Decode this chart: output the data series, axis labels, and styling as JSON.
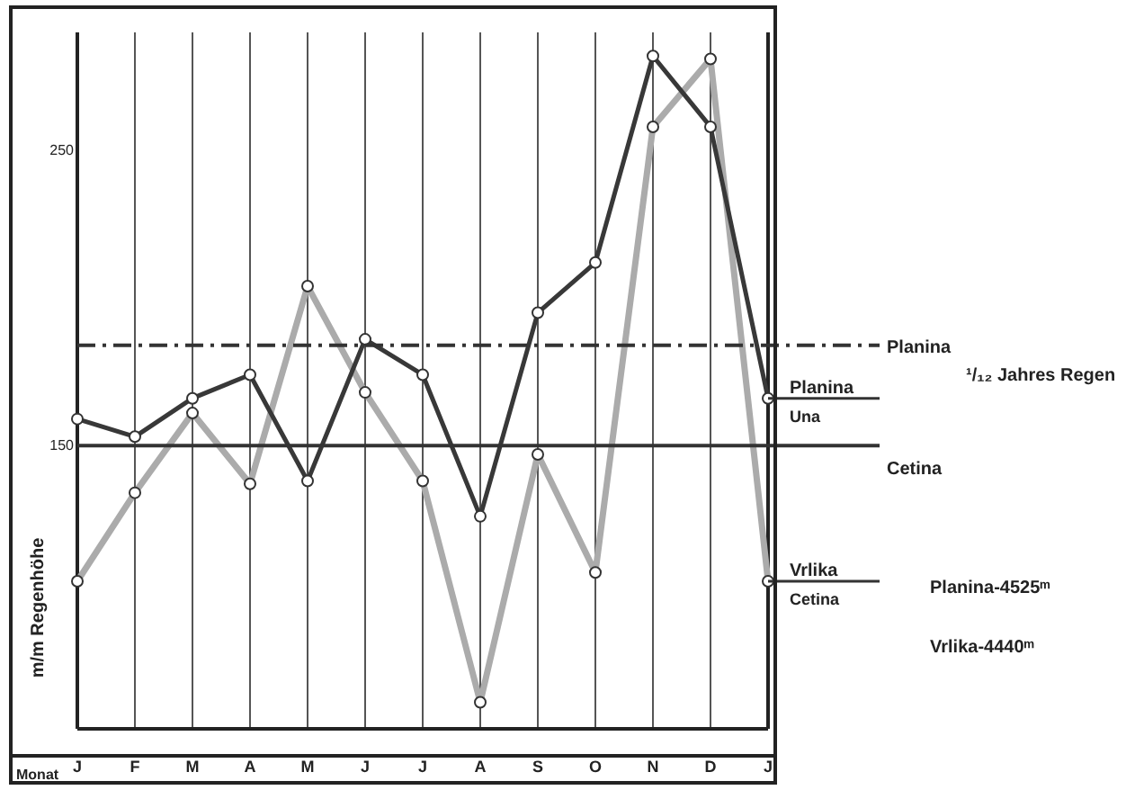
{
  "chart_data": {
    "type": "line",
    "xlabel": "Monat",
    "ylabel": "m/m Regenhöhe",
    "categories": [
      "J",
      "F",
      "M",
      "A",
      "M",
      "J",
      "J",
      "A",
      "S",
      "O",
      "N",
      "D",
      "J"
    ],
    "series": [
      {
        "name": "Planina Una",
        "color": "#383838",
        "values": [
          159,
          153,
          166,
          174,
          138,
          186,
          174,
          126,
          195,
          212,
          282,
          258,
          166
        ]
      },
      {
        "name": "Vrlika Cetina",
        "color": "#ababab",
        "values": [
          104,
          134,
          161,
          137,
          204,
          168,
          138,
          63,
          147,
          107,
          258,
          281,
          104
        ]
      }
    ],
    "ylim": [
      54,
      290
    ],
    "yticks": [
      {
        "value": 150,
        "label": "150"
      },
      {
        "value": 250,
        "label": "250"
      }
    ],
    "ref_lines": [
      {
        "axis": "y",
        "value": 184,
        "label": "Planina",
        "line_style": "dashed",
        "color": "#333333"
      },
      {
        "axis": "y",
        "value": 150,
        "label": "Cetina",
        "color": "#333333"
      }
    ],
    "annotations": [
      "¹/₁₂ Jahres Regen",
      "Planina-4525ᵐ",
      "Vrlika-4440ᵐ"
    ],
    "grid": "x",
    "marker": "circle",
    "legend": false
  }
}
